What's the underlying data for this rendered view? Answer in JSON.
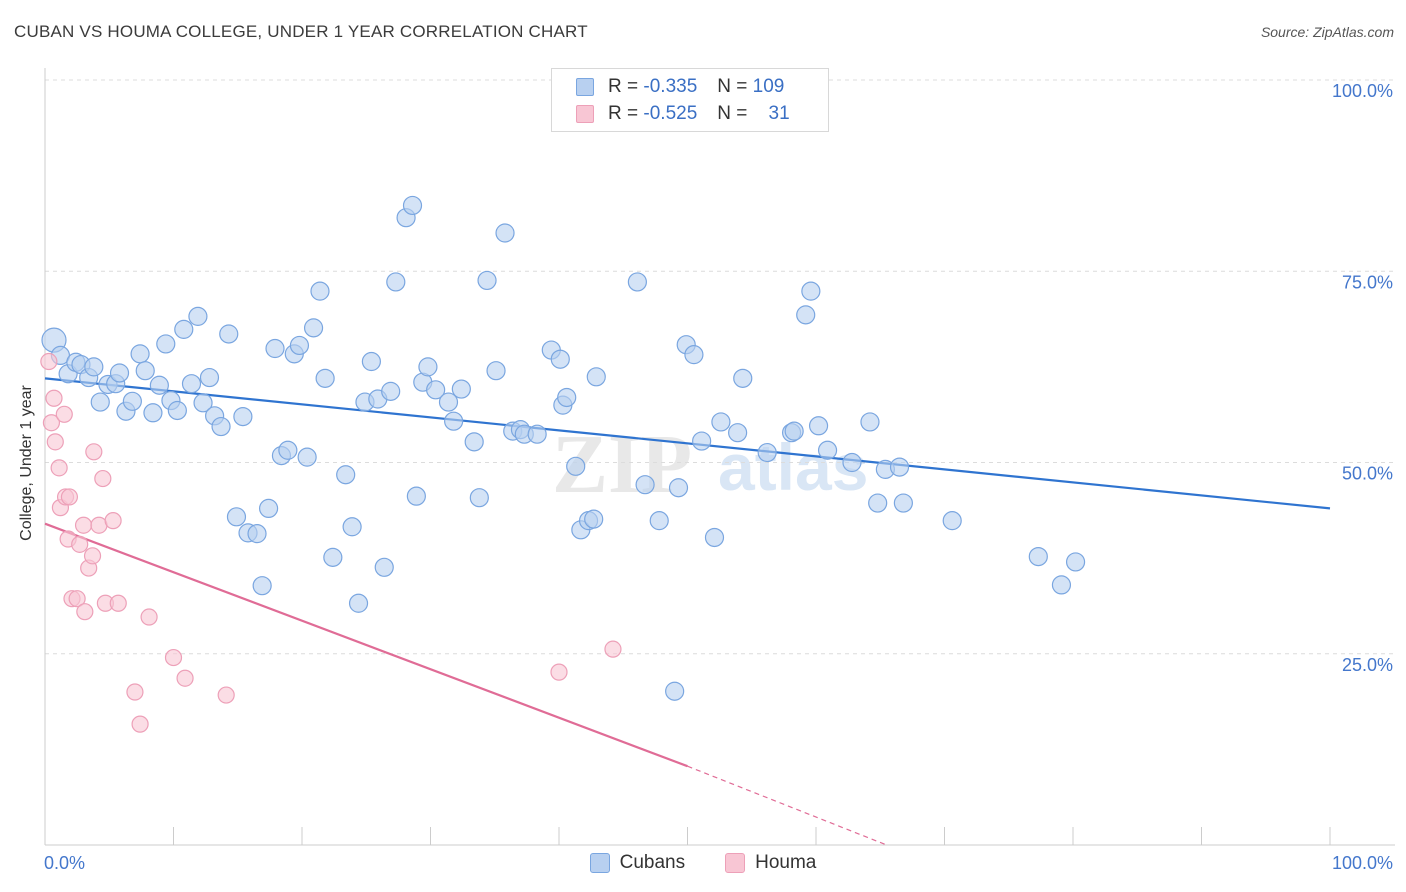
{
  "title": "CUBAN VS HOUMA COLLEGE, UNDER 1 YEAR CORRELATION CHART",
  "source": "Source: ZipAtlas.com",
  "watermark": {
    "zip": "ZIP",
    "atlas": "atlas"
  },
  "legend": {
    "r_label": "R =",
    "n_label": "N =",
    "rows": [
      {
        "r": "-0.335",
        "n": "109"
      },
      {
        "r": "-0.525",
        "n": "31"
      }
    ]
  },
  "bottom_legend": [
    "Cubans",
    "Houma"
  ],
  "colors": {
    "cubans_fill": "#b8d0f0",
    "cubans_stroke": "#7aa6e0",
    "cubans_line": "#2f74d0",
    "houma_fill": "#f8c6d4",
    "houma_stroke": "#eda0b8",
    "houma_line": "#e06c96",
    "axis_text": "#4477cc",
    "grid": "#dcdcdc"
  },
  "chart_data": {
    "type": "scatter",
    "title": "CUBAN VS HOUMA COLLEGE, UNDER 1 YEAR CORRELATION CHART",
    "xlabel": "",
    "ylabel": "College, Under 1 year",
    "xlim": [
      0,
      100
    ],
    "ylim": [
      0,
      100
    ],
    "x_tick_labels": [
      "0.0%",
      "100.0%"
    ],
    "y_tick_labels": [
      "25.0%",
      "50.0%",
      "75.0%",
      "100.0%"
    ],
    "grid": true,
    "legend_position": "top-center",
    "series": [
      {
        "name": "Cubans",
        "r": -0.335,
        "n": 109,
        "trend": {
          "x": [
            0,
            100
          ],
          "y": [
            61.0,
            44.0
          ]
        },
        "points": [
          [
            0.7,
            66
          ],
          [
            1.2,
            64
          ],
          [
            1.8,
            61.6
          ],
          [
            2.4,
            63.1
          ],
          [
            2.8,
            62.8
          ],
          [
            3.4,
            61.1
          ],
          [
            3.8,
            62.5
          ],
          [
            4.3,
            57.9
          ],
          [
            4.9,
            60.2
          ],
          [
            5.5,
            60.3
          ],
          [
            5.8,
            61.7
          ],
          [
            6.3,
            56.7
          ],
          [
            6.8,
            58.0
          ],
          [
            7.4,
            64.2
          ],
          [
            7.8,
            62.0
          ],
          [
            8.4,
            56.5
          ],
          [
            8.9,
            60.1
          ],
          [
            9.4,
            65.5
          ],
          [
            9.8,
            58.1
          ],
          [
            10.3,
            56.8
          ],
          [
            10.8,
            67.4
          ],
          [
            11.4,
            60.3
          ],
          [
            11.9,
            69.1
          ],
          [
            12.3,
            57.8
          ],
          [
            12.8,
            61.1
          ],
          [
            13.2,
            56.1
          ],
          [
            13.7,
            54.7
          ],
          [
            14.3,
            66.8
          ],
          [
            14.9,
            42.9
          ],
          [
            15.4,
            56.0
          ],
          [
            15.8,
            40.8
          ],
          [
            16.5,
            40.7
          ],
          [
            16.9,
            33.9
          ],
          [
            17.4,
            44.0
          ],
          [
            17.9,
            64.9
          ],
          [
            18.4,
            50.9
          ],
          [
            18.9,
            51.6
          ],
          [
            19.4,
            64.2
          ],
          [
            19.8,
            65.3
          ],
          [
            20.4,
            50.7
          ],
          [
            20.9,
            67.6
          ],
          [
            21.4,
            72.4
          ],
          [
            21.8,
            61.0
          ],
          [
            22.4,
            37.6
          ],
          [
            23.4,
            48.4
          ],
          [
            23.9,
            41.6
          ],
          [
            24.4,
            31.6
          ],
          [
            24.9,
            57.9
          ],
          [
            25.4,
            63.2
          ],
          [
            25.9,
            58.3
          ],
          [
            26.4,
            36.3
          ],
          [
            26.9,
            59.3
          ],
          [
            27.3,
            73.6
          ],
          [
            28.1,
            82.0
          ],
          [
            28.6,
            83.6
          ],
          [
            28.9,
            45.6
          ],
          [
            29.4,
            60.5
          ],
          [
            29.8,
            62.5
          ],
          [
            30.4,
            59.5
          ],
          [
            31.4,
            57.9
          ],
          [
            31.8,
            55.4
          ],
          [
            32.4,
            59.6
          ],
          [
            33.4,
            52.7
          ],
          [
            33.8,
            45.4
          ],
          [
            34.4,
            73.8
          ],
          [
            35.1,
            62.0
          ],
          [
            35.8,
            80.0
          ],
          [
            36.4,
            54.1
          ],
          [
            37.0,
            54.3
          ],
          [
            37.3,
            53.7
          ],
          [
            38.3,
            53.7
          ],
          [
            39.4,
            64.7
          ],
          [
            40.1,
            63.5
          ],
          [
            40.3,
            57.5
          ],
          [
            40.6,
            58.5
          ],
          [
            41.3,
            49.5
          ],
          [
            41.7,
            41.2
          ],
          [
            42.3,
            42.4
          ],
          [
            42.7,
            42.6
          ],
          [
            46.1,
            73.6
          ],
          [
            46.7,
            47.1
          ],
          [
            47.8,
            42.4
          ],
          [
            49.0,
            20.1
          ],
          [
            49.3,
            46.7
          ],
          [
            49.9,
            65.4
          ],
          [
            50.5,
            64.1
          ],
          [
            51.1,
            52.8
          ],
          [
            52.1,
            40.2
          ],
          [
            52.6,
            55.3
          ],
          [
            53.9,
            53.9
          ],
          [
            54.3,
            61.0
          ],
          [
            56.2,
            51.3
          ],
          [
            58.1,
            53.9
          ],
          [
            58.3,
            54.1
          ],
          [
            59.2,
            69.3
          ],
          [
            59.6,
            72.4
          ],
          [
            60.2,
            54.8
          ],
          [
            60.9,
            51.6
          ],
          [
            62.8,
            50.0
          ],
          [
            64.2,
            55.3
          ],
          [
            64.8,
            44.7
          ],
          [
            65.4,
            49.1
          ],
          [
            66.5,
            49.4
          ],
          [
            66.8,
            44.7
          ],
          [
            70.6,
            42.4
          ],
          [
            77.3,
            37.7
          ],
          [
            79.1,
            34.0
          ],
          [
            80.2,
            37.0
          ],
          [
            42.9,
            61.2
          ]
        ]
      },
      {
        "name": "Houma",
        "r": -0.525,
        "n": 31,
        "trend": {
          "x": [
            0,
            50
          ],
          "y": [
            42.0,
            10.3
          ]
        },
        "trend_dashed": {
          "x": [
            50,
            65.5
          ],
          "y": [
            10.3,
            0
          ]
        },
        "points": [
          [
            0.3,
            63.2
          ],
          [
            0.5,
            55.2
          ],
          [
            0.7,
            58.4
          ],
          [
            0.8,
            52.7
          ],
          [
            1.1,
            49.3
          ],
          [
            1.2,
            44.1
          ],
          [
            1.5,
            56.3
          ],
          [
            1.6,
            45.5
          ],
          [
            1.8,
            40.0
          ],
          [
            1.9,
            45.5
          ],
          [
            2.1,
            32.2
          ],
          [
            2.5,
            32.2
          ],
          [
            2.7,
            39.3
          ],
          [
            3.0,
            41.8
          ],
          [
            3.1,
            30.5
          ],
          [
            3.4,
            36.2
          ],
          [
            3.7,
            37.8
          ],
          [
            3.8,
            51.4
          ],
          [
            4.2,
            41.8
          ],
          [
            4.5,
            47.9
          ],
          [
            4.7,
            31.6
          ],
          [
            5.3,
            42.4
          ],
          [
            5.7,
            31.6
          ],
          [
            7.0,
            20.0
          ],
          [
            7.4,
            15.8
          ],
          [
            8.1,
            29.8
          ],
          [
            10.0,
            24.5
          ],
          [
            10.9,
            21.8
          ],
          [
            14.1,
            19.6
          ],
          [
            40.0,
            22.6
          ],
          [
            44.2,
            25.6
          ]
        ]
      }
    ]
  }
}
